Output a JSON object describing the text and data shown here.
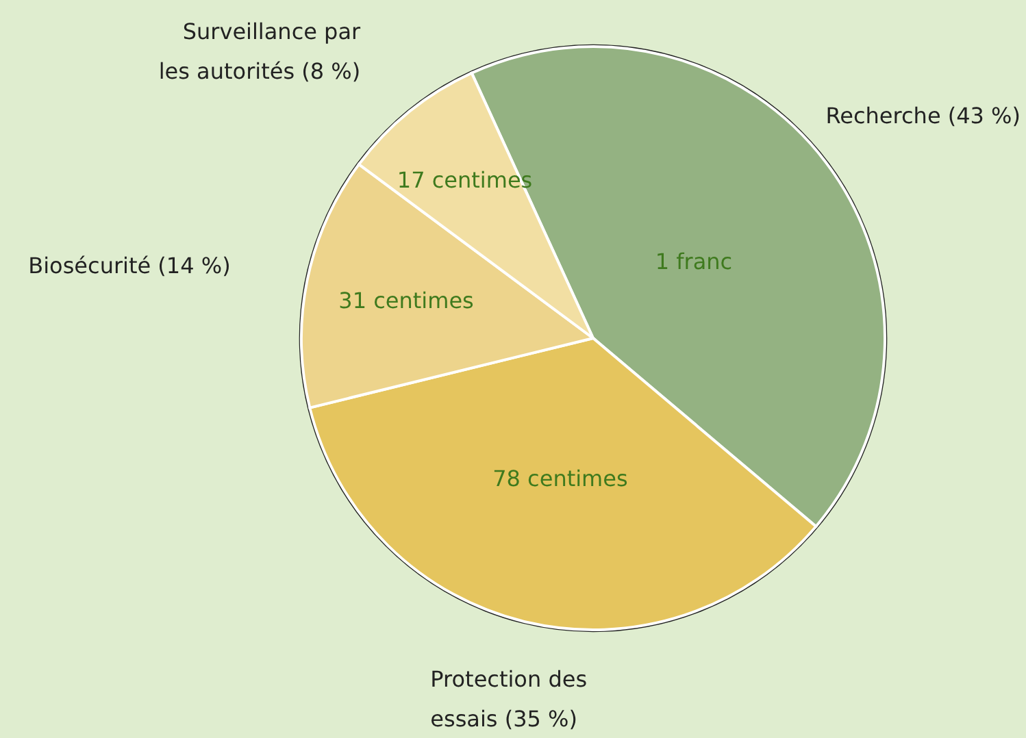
{
  "chart_data": {
    "type": "pie",
    "categories": [
      "Recherche (43 %)",
      "Protection des essais (35 %)",
      "Biosécurité (14 %)",
      "Surveillance par les autorités (8 %)"
    ],
    "values": [
      43,
      35,
      14,
      8
    ],
    "colors": [
      "#94b282",
      "#e5c55e",
      "#edd48c",
      "#f2dfa3"
    ],
    "annotations": [
      "1 franc",
      "78 centimes",
      "31 centimes",
      "17 centimes"
    ]
  }
}
